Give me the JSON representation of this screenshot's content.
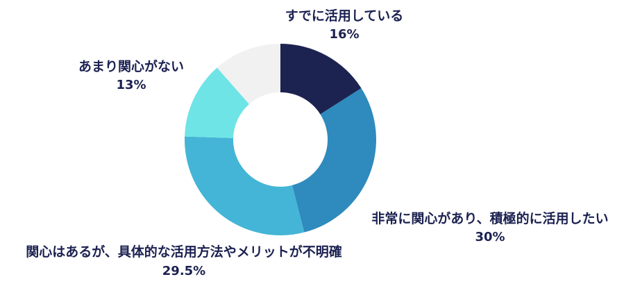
{
  "chart_data": {
    "type": "pie",
    "variant": "donut",
    "start": "12 o'clock, clockwise",
    "slices": [
      {
        "label": "すでに活用している",
        "value": 16,
        "value_label": "16%",
        "color": "#1c2350"
      },
      {
        "label": "非常に関心があり、積極的に活用したい",
        "value": 30,
        "value_label": "30%",
        "color": "#2f8abd"
      },
      {
        "label": "関心はあるが、具体的な活用方法やメリットが不明確",
        "value": 29.5,
        "value_label": "29.5%",
        "color": "#44b5d6"
      },
      {
        "label": "あまり関心がない",
        "value": 13,
        "value_label": "13%",
        "color": "#6ee4e6"
      },
      {
        "label": "",
        "value": 11.5,
        "value_label": "",
        "color": "#f1f1f1"
      }
    ]
  }
}
